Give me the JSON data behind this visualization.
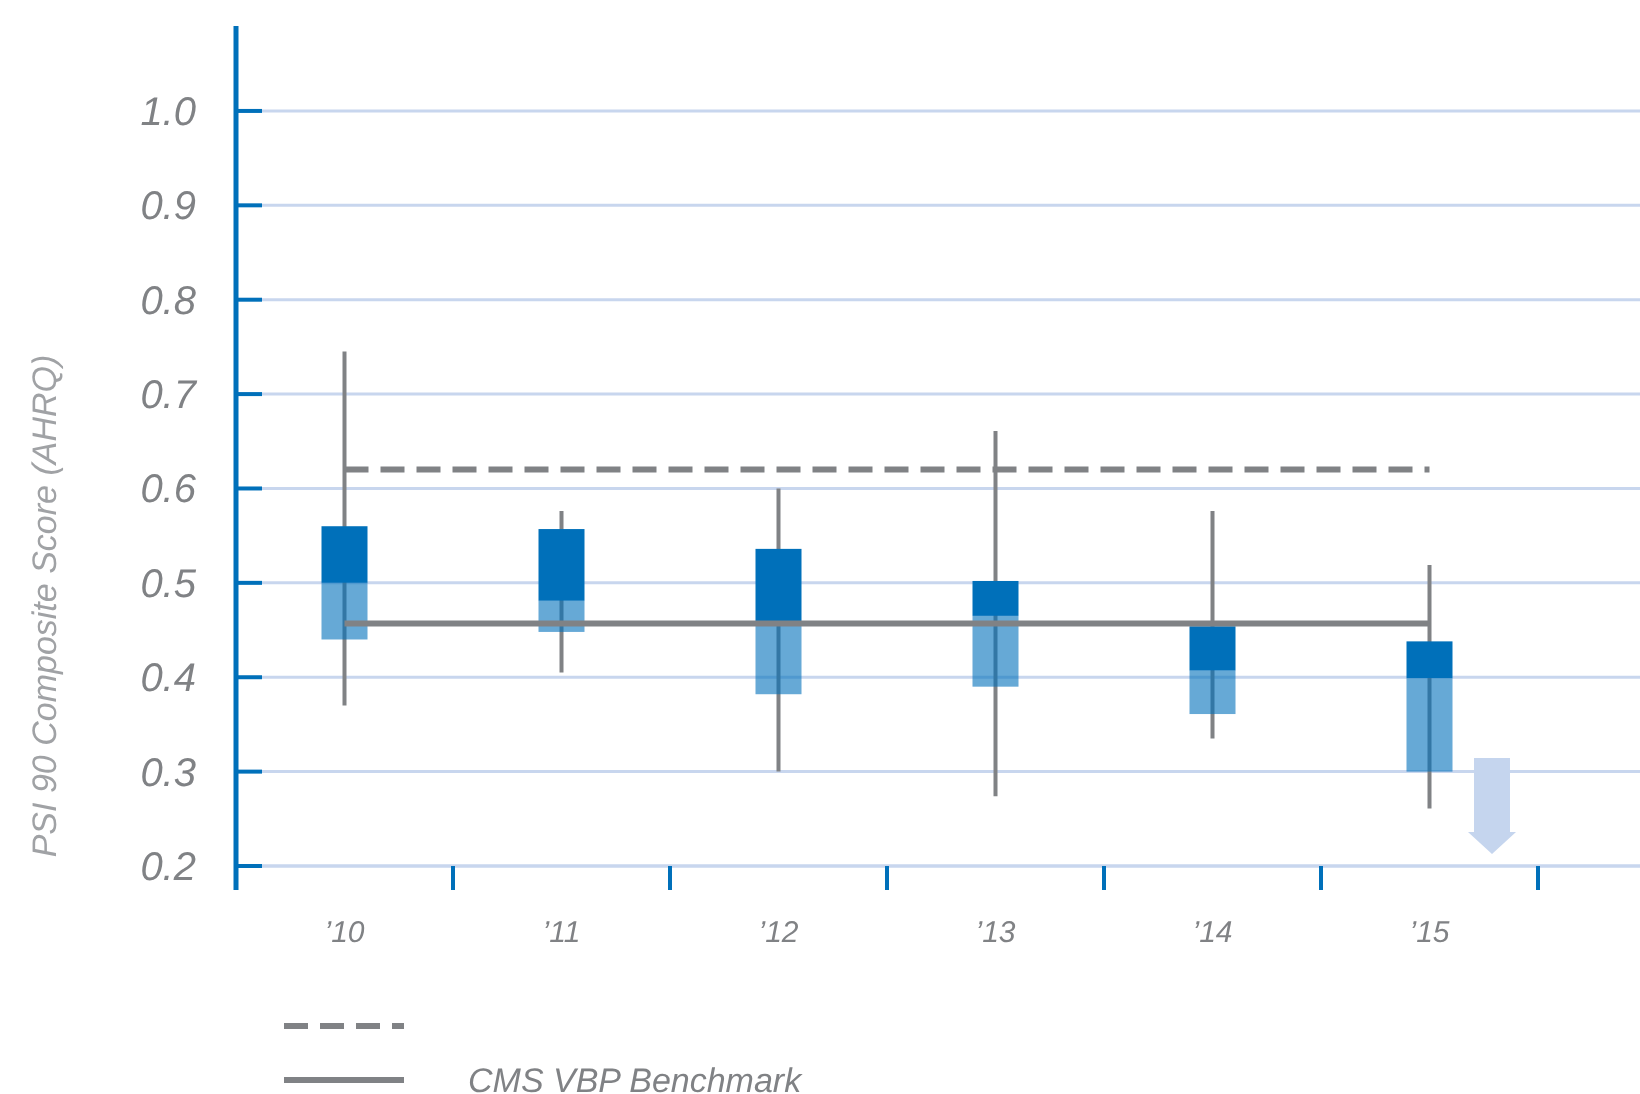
{
  "chart_data": {
    "type": "box",
    "ylabel": "PSI 90 Composite Score (AHRQ)",
    "categories": [
      "’10",
      "’11",
      "’12",
      "’13",
      "’14",
      "’15"
    ],
    "series": [
      {
        "color": "#0070ba",
        "boxes": [
          {
            "low": 0.37,
            "q1": 0.44,
            "median": 0.5,
            "q3": 0.56,
            "high": 0.745
          },
          {
            "low": 0.405,
            "q1": 0.448,
            "median": 0.481,
            "q3": 0.557,
            "high": 0.576
          },
          {
            "low": 0.3,
            "q1": 0.382,
            "median": 0.457,
            "q3": 0.536,
            "high": 0.6
          },
          {
            "low": 0.274,
            "q1": 0.39,
            "median": 0.465,
            "q3": 0.502,
            "high": 0.661
          },
          {
            "low": 0.335,
            "q1": 0.361,
            "median": 0.407,
            "q3": 0.454,
            "high": 0.576
          },
          {
            "low": 0.261,
            "q1": 0.3,
            "median": 0.399,
            "q3": 0.438,
            "high": 0.519
          }
        ]
      }
    ],
    "ylim": [
      0.2,
      1.09
    ],
    "yticks": [
      0.2,
      0.3,
      0.4,
      0.5,
      0.6,
      0.7,
      0.8,
      0.9,
      {
        "value": 1,
        "label": "1.0"
      }
    ],
    "grid": "y",
    "ref_lines": [
      {
        "axis": "y",
        "value": 0.62,
        "line_style": "dashed",
        "color": "#808285"
      },
      {
        "axis": "y",
        "value": 0.457,
        "label": "CMS VBP Benchmark",
        "line_style": "solid",
        "color": "#808285"
      }
    ],
    "legend": "bottom"
  }
}
